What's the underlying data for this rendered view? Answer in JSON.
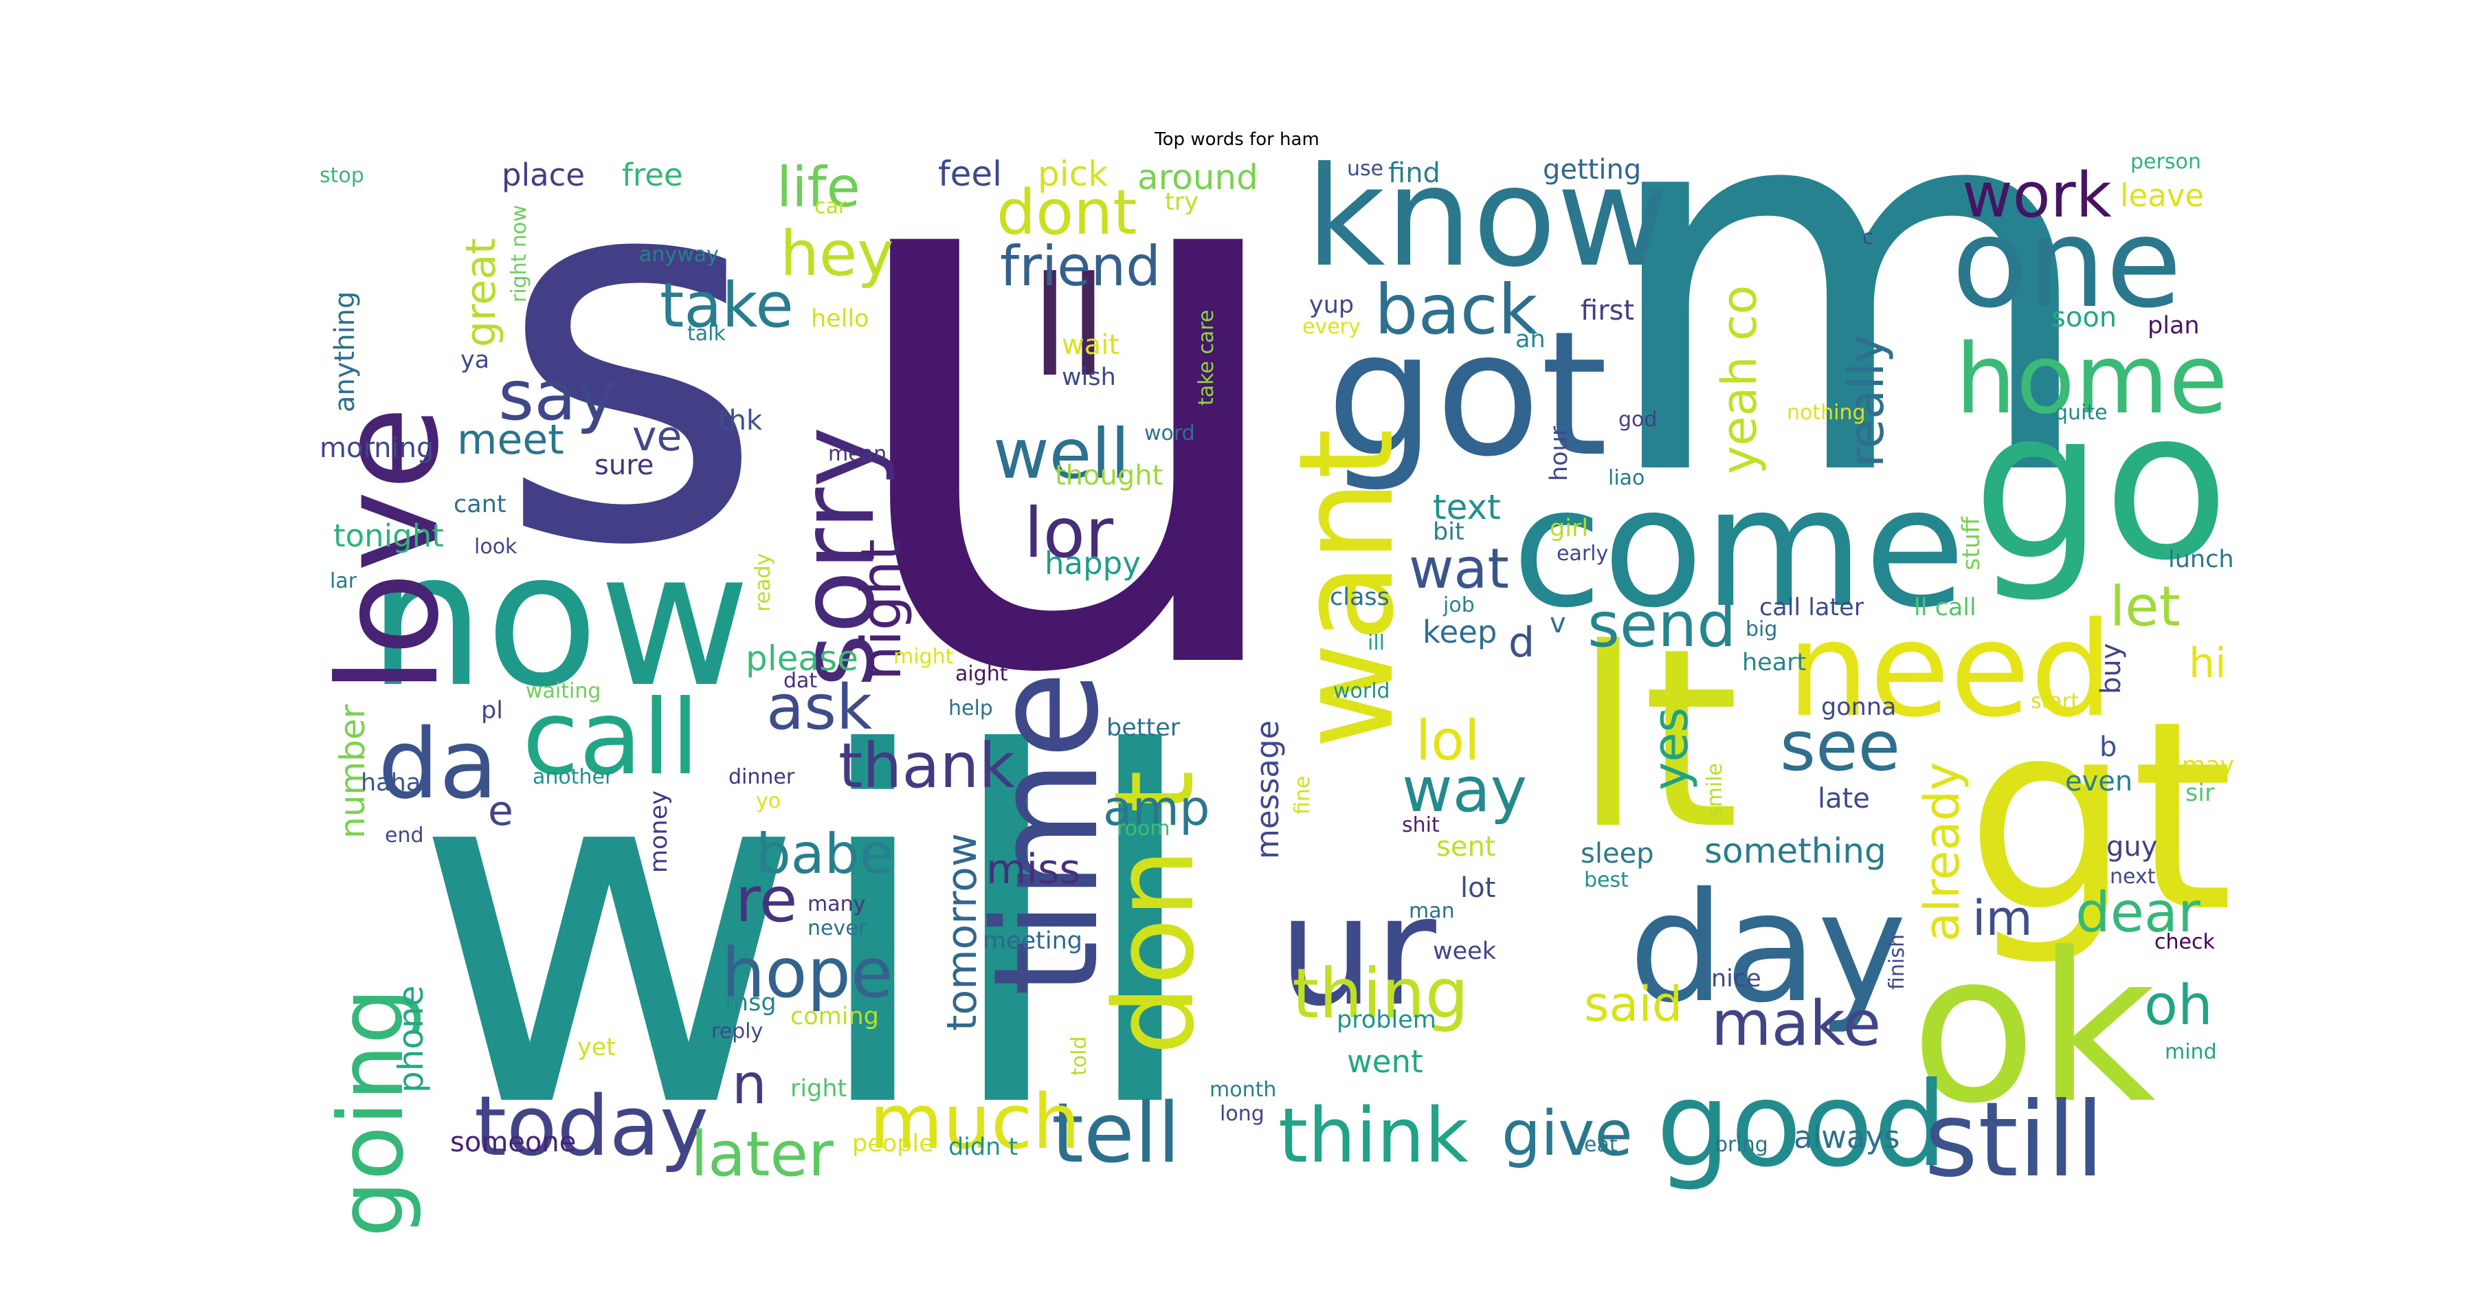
{
  "title": "Top words for ham",
  "palette": "viridis",
  "words": [
    {
      "text": "u",
      "c": "#46176a"
    },
    {
      "text": "s",
      "c": "#433f86"
    },
    {
      "text": "m",
      "c": "#26828e"
    },
    {
      "text": "will",
      "c": "#21918c"
    },
    {
      "text": "lt",
      "c": "#d0e11c"
    },
    {
      "text": "gt",
      "c": "#dde318"
    },
    {
      "text": "now",
      "c": "#1f9a8a"
    },
    {
      "text": "ok",
      "c": "#addc30"
    },
    {
      "text": "go",
      "c": "#28ae80"
    },
    {
      "text": "got",
      "c": "#31648e"
    },
    {
      "text": "know",
      "c": "#2a778e"
    },
    {
      "text": "come",
      "c": "#24868e"
    },
    {
      "text": "one",
      "c": "#2a788e"
    },
    {
      "text": "love",
      "c": "#482374"
    },
    {
      "text": "day",
      "c": "#30688e"
    },
    {
      "text": "good",
      "c": "#228c8d"
    },
    {
      "text": "still",
      "c": "#3b528b"
    },
    {
      "text": "time",
      "c": "#3e4989"
    },
    {
      "text": "ur",
      "c": "#3e4a89"
    },
    {
      "text": "need",
      "c": "#e5e419"
    },
    {
      "text": "want",
      "c": "#dde318"
    },
    {
      "text": "call",
      "c": "#21a685"
    },
    {
      "text": "don t",
      "c": "#d0e11c"
    },
    {
      "text": "sorry",
      "c": "#482979"
    },
    {
      "text": "ll",
      "c": "#46245c"
    },
    {
      "text": "home",
      "c": "#3aba76"
    },
    {
      "text": "today",
      "c": "#414487"
    },
    {
      "text": "going",
      "c": "#35b779"
    },
    {
      "text": "da",
      "c": "#3b528b"
    },
    {
      "text": "think",
      "c": "#20a386"
    },
    {
      "text": "tell",
      "c": "#2d708e"
    },
    {
      "text": "much",
      "c": "#dde318"
    },
    {
      "text": "hope",
      "c": "#33638d"
    },
    {
      "text": "later",
      "c": "#5ec962"
    },
    {
      "text": "well",
      "c": "#2c718e"
    },
    {
      "text": "lor",
      "c": "#472c7a"
    },
    {
      "text": "say",
      "c": "#3f4788"
    },
    {
      "text": "take",
      "c": "#287d8e"
    },
    {
      "text": "back",
      "c": "#2d708e"
    },
    {
      "text": "work",
      "c": "#471365"
    },
    {
      "text": "dont",
      "c": "#c8e020"
    },
    {
      "text": "hey",
      "c": "#bddf26"
    },
    {
      "text": "life",
      "c": "#6ece58"
    },
    {
      "text": "friend",
      "c": "#34608d"
    },
    {
      "text": "thank",
      "c": "#443a83"
    },
    {
      "text": "ask",
      "c": "#3e4c8a"
    },
    {
      "text": "night",
      "c": "#482173"
    },
    {
      "text": "send",
      "c": "#25858e"
    },
    {
      "text": "see",
      "c": "#2e6f8e"
    },
    {
      "text": "lol",
      "c": "#e2e418"
    },
    {
      "text": "way",
      "c": "#238a8d"
    },
    {
      "text": "wat",
      "c": "#3a548c"
    },
    {
      "text": "thing",
      "c": "#c0df25"
    },
    {
      "text": "give",
      "c": "#2a788e"
    },
    {
      "text": "make",
      "c": "#404588"
    },
    {
      "text": "said",
      "c": "#d8e219"
    },
    {
      "text": "re",
      "c": "#46327e"
    },
    {
      "text": "babe",
      "c": "#277f8e"
    },
    {
      "text": "yes",
      "c": "#1fa187"
    },
    {
      "text": "already",
      "c": "#e0e318"
    },
    {
      "text": "really",
      "c": "#2e6e8e"
    },
    {
      "text": "yeah co",
      "c": "#c2df23"
    },
    {
      "text": "let",
      "c": "#9fda3a"
    },
    {
      "text": "hi",
      "c": "#e5e419"
    },
    {
      "text": "dear",
      "c": "#35b779"
    },
    {
      "text": "oh",
      "c": "#20a486"
    },
    {
      "text": "im",
      "c": "#3d4e8a"
    },
    {
      "text": "n",
      "c": "#443983"
    },
    {
      "text": "amp",
      "c": "#2a788e"
    },
    {
      "text": "miss",
      "c": "#472f7d"
    },
    {
      "text": "tomorrow",
      "c": "#31688e"
    },
    {
      "text": "please",
      "c": "#3aba76"
    },
    {
      "text": "great",
      "c": "#b5de2b"
    },
    {
      "text": "meet",
      "c": "#2b748e"
    },
    {
      "text": "ve",
      "c": "#3f4889"
    },
    {
      "text": "feel",
      "c": "#3e4989"
    },
    {
      "text": "around",
      "c": "#7ad151"
    },
    {
      "text": "pick",
      "c": "#d8e219"
    },
    {
      "text": "place",
      "c": "#433e85"
    },
    {
      "text": "free",
      "c": "#34b679"
    },
    {
      "text": "number",
      "c": "#7ad151"
    },
    {
      "text": "phone",
      "c": "#22a884"
    },
    {
      "text": "happy",
      "c": "#1f9e89"
    },
    {
      "text": "message",
      "c": "#3e4a89"
    },
    {
      "text": "something",
      "c": "#287c8e"
    },
    {
      "text": "keep",
      "c": "#2d708e"
    },
    {
      "text": "d",
      "c": "#3b528b"
    },
    {
      "text": "text",
      "c": "#21908d"
    },
    {
      "text": "e",
      "c": "#404688"
    },
    {
      "text": "ya",
      "c": "#3e4c8a"
    },
    {
      "text": "thk",
      "c": "#3b528b"
    },
    {
      "text": "sure",
      "c": "#46327e"
    },
    {
      "text": "morning",
      "c": "#3f4788"
    },
    {
      "text": "tonight",
      "c": "#2db27d"
    },
    {
      "text": "anything",
      "c": "#2d708e"
    },
    {
      "text": "stop",
      "c": "#37b878"
    },
    {
      "text": "car",
      "c": "#c2df23"
    },
    {
      "text": "try",
      "c": "#bddf26"
    },
    {
      "text": "use",
      "c": "#3e4c8a"
    },
    {
      "text": "find",
      "c": "#27808e"
    },
    {
      "text": "getting",
      "c": "#31678e"
    },
    {
      "text": "person",
      "c": "#2db27d"
    },
    {
      "text": "leave",
      "c": "#dde318"
    },
    {
      "text": "soon",
      "c": "#22a785"
    },
    {
      "text": "plan",
      "c": "#471365"
    },
    {
      "text": "c",
      "c": "#3e4989"
    },
    {
      "text": "first",
      "c": "#433e85"
    },
    {
      "text": "ah",
      "c": "#23898e"
    },
    {
      "text": "yup",
      "c": "#3f4788"
    },
    {
      "text": "every",
      "c": "#dde318"
    },
    {
      "text": "hello",
      "c": "#d0e11c"
    },
    {
      "text": "talk",
      "c": "#25858e"
    },
    {
      "text": "anyway",
      "c": "#26818e"
    },
    {
      "text": "right now",
      "c": "#6ccd5a"
    },
    {
      "text": "wait",
      "c": "#dde318"
    },
    {
      "text": "wish",
      "c": "#3e4989"
    },
    {
      "text": "word",
      "c": "#2c728e"
    },
    {
      "text": "take care",
      "c": "#8ed645"
    },
    {
      "text": "mean",
      "c": "#46337f"
    },
    {
      "text": "thought",
      "c": "#9bd93c"
    },
    {
      "text": "god",
      "c": "#433e85"
    },
    {
      "text": "hour",
      "c": "#3e4989"
    },
    {
      "text": "liao",
      "c": "#2a778e"
    },
    {
      "text": "nothing",
      "c": "#dde318"
    },
    {
      "text": "quite",
      "c": "#25858e"
    },
    {
      "text": "cant",
      "c": "#2d708e"
    },
    {
      "text": "look",
      "c": "#414487"
    },
    {
      "text": "ready",
      "c": "#b8de29"
    },
    {
      "text": "bit",
      "c": "#287d8e"
    },
    {
      "text": "girl",
      "c": "#b8de29"
    },
    {
      "text": "early",
      "c": "#404688"
    },
    {
      "text": "stuff",
      "c": "#7ad151"
    },
    {
      "text": "lunch",
      "c": "#2a768e"
    },
    {
      "text": "class",
      "c": "#2c718e"
    },
    {
      "text": "job",
      "c": "#26828e"
    },
    {
      "text": "v",
      "c": "#2e6d8e"
    },
    {
      "text": "call later",
      "c": "#3e4989"
    },
    {
      "text": "ll call",
      "c": "#52c569"
    },
    {
      "text": "lar",
      "c": "#2a788e"
    },
    {
      "text": "might",
      "c": "#dde318"
    },
    {
      "text": "aight",
      "c": "#471365"
    },
    {
      "text": "big",
      "c": "#2c728e"
    },
    {
      "text": "ill",
      "c": "#1fa187"
    },
    {
      "text": "heart",
      "c": "#25848e"
    },
    {
      "text": "waiting",
      "c": "#6ece58"
    },
    {
      "text": "pl",
      "c": "#3f4788"
    },
    {
      "text": "dat",
      "c": "#46307e"
    },
    {
      "text": "help",
      "c": "#2c718e"
    },
    {
      "text": "world",
      "c": "#21918c"
    },
    {
      "text": "start",
      "c": "#dde318"
    },
    {
      "text": "gonna",
      "c": "#3e4989"
    },
    {
      "text": "better",
      "c": "#2c718e"
    },
    {
      "text": "fine",
      "c": "#d0e11c"
    },
    {
      "text": "haha",
      "c": "#3b528b"
    },
    {
      "text": "another",
      "c": "#21918c"
    },
    {
      "text": "dinner",
      "c": "#46337f"
    },
    {
      "text": "yo",
      "c": "#dde318"
    },
    {
      "text": "smile",
      "c": "#b8de29"
    },
    {
      "text": "late",
      "c": "#3e4989"
    },
    {
      "text": "even",
      "c": "#26818e"
    },
    {
      "text": "may",
      "c": "#dde318"
    },
    {
      "text": "sir",
      "c": "#52c569"
    },
    {
      "text": "end",
      "c": "#3e4989"
    },
    {
      "text": "room",
      "c": "#3fbc73"
    },
    {
      "text": "shit",
      "c": "#482173"
    },
    {
      "text": "sent",
      "c": "#bddf26"
    },
    {
      "text": "money",
      "c": "#443983"
    },
    {
      "text": "sleep",
      "c": "#2a788e"
    },
    {
      "text": "best",
      "c": "#21918c"
    },
    {
      "text": "guy",
      "c": "#433e85"
    },
    {
      "text": "next",
      "c": "#3e4989"
    },
    {
      "text": "b",
      "c": "#3b528b"
    },
    {
      "text": "buy",
      "c": "#414487"
    },
    {
      "text": "many",
      "c": "#46337f"
    },
    {
      "text": "never",
      "c": "#2c718e"
    },
    {
      "text": "lot",
      "c": "#3e4989"
    },
    {
      "text": "man",
      "c": "#2d708e"
    },
    {
      "text": "week",
      "c": "#414487"
    },
    {
      "text": "meeting",
      "c": "#31688e"
    },
    {
      "text": "problem",
      "c": "#21918c"
    },
    {
      "text": "coming",
      "c": "#bddf26"
    },
    {
      "text": "msg",
      "c": "#25848e"
    },
    {
      "text": "reply",
      "c": "#3e4989"
    },
    {
      "text": "told",
      "c": "#b8de29"
    },
    {
      "text": "went",
      "c": "#22a785"
    },
    {
      "text": "nice",
      "c": "#3e4989"
    },
    {
      "text": "finish",
      "c": "#3e4989"
    },
    {
      "text": "check",
      "c": "#440154"
    },
    {
      "text": "mind",
      "c": "#20a386"
    },
    {
      "text": "yet",
      "c": "#d0e11c"
    },
    {
      "text": "right",
      "c": "#52c569"
    },
    {
      "text": "month",
      "c": "#27808e"
    },
    {
      "text": "long",
      "c": "#414487"
    },
    {
      "text": "someone",
      "c": "#482173"
    },
    {
      "text": "people",
      "c": "#dde318"
    },
    {
      "text": "didn t",
      "c": "#21918c"
    },
    {
      "text": "eat",
      "c": "#2a788e"
    },
    {
      "text": "bring",
      "c": "#2c718e"
    },
    {
      "text": "always",
      "c": "#2c728e"
    }
  ]
}
